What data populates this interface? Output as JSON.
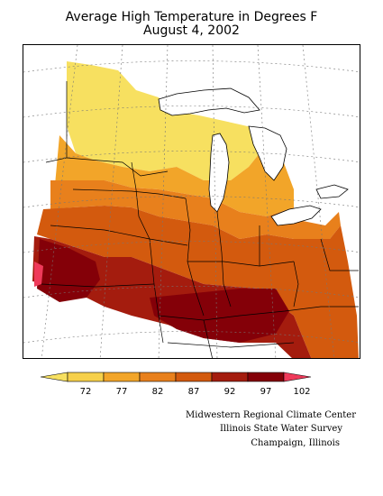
{
  "title": "Average High Temperature in Degrees F",
  "subtitle": "August 4, 2002",
  "legend": {
    "ticks": [
      "72",
      "77",
      "82",
      "87",
      "92",
      "97",
      "102"
    ],
    "colors": [
      "#f7e060",
      "#f6d04a",
      "#f2a529",
      "#e8801c",
      "#d35a0e",
      "#a41c0e",
      "#840008",
      "#ef3a5a"
    ]
  },
  "credits": {
    "line1": "Midwestern Regional Climate Center",
    "line2": "Illinois State Water Survey",
    "line3": "Champaign, Illinois"
  }
}
